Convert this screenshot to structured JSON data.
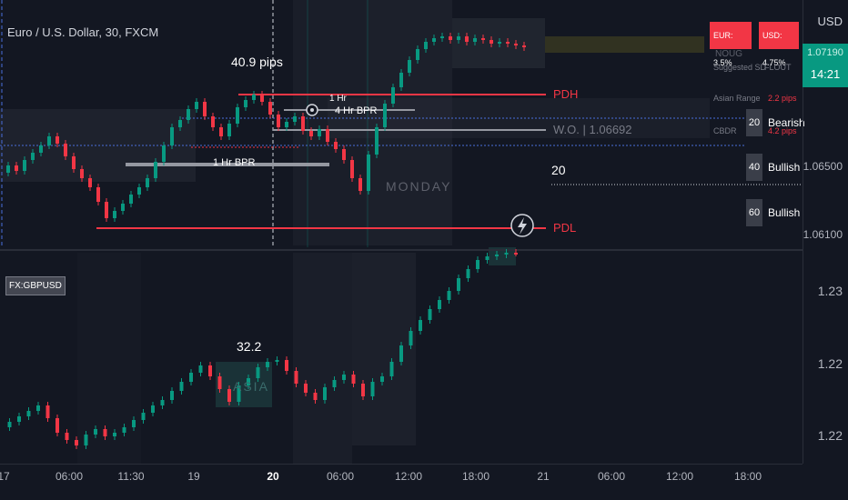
{
  "chart": {
    "title": "Euro / U.S. Dollar, 30, FXCM",
    "currency": "USD",
    "last_price": "1.07190",
    "countdown": "14:21",
    "price_labels": [
      "1.06500",
      "1.06100"
    ],
    "lower_price_labels": [
      "1.23",
      "1.22",
      "1.22"
    ],
    "time_labels": [
      "17",
      "06:00",
      "11:30",
      "19",
      "20",
      "06:00",
      "12:00",
      "18:00",
      "21",
      "06:00",
      "12:00",
      "18:00"
    ],
    "compare_symbol": "FX:GBPUSD"
  },
  "annotations": {
    "pips_label": "40.9 pips",
    "lower_pips_label": "32.2",
    "pdh": "PDH",
    "pdl": "PDL",
    "wo_label": "W.O.",
    "wo_value": "1.06692",
    "monday": "MONDAY",
    "bpr_1h": "1 Hr BPR",
    "bpr_4h": "4 Hr BPR",
    "bpr_1h_top": "1 Hr",
    "asia": "ASIA",
    "session_20": "20"
  },
  "info_panel": {
    "eur_badge": "EUR: 3.5%",
    "usd_badge": "USD: 4.75%",
    "noug": "NOUG",
    "suggested_sd": "Suggested SD",
    "flout": "FLOUT",
    "asian_range": "Asian Range",
    "asian_range_value": "2.2 pips",
    "cbdr": "CBDR",
    "cbdr_value": "4.2 pips"
  },
  "bias": [
    {
      "tf": "20",
      "label": "Bearish"
    },
    {
      "tf": "40",
      "label": "Bullish"
    },
    {
      "tf": "60",
      "label": "Bullish"
    }
  ],
  "colors": {
    "background": "#131722",
    "bull": "#089981",
    "bear": "#f23645",
    "level": "#f23645",
    "session_line": "#4a6fdc"
  }
}
